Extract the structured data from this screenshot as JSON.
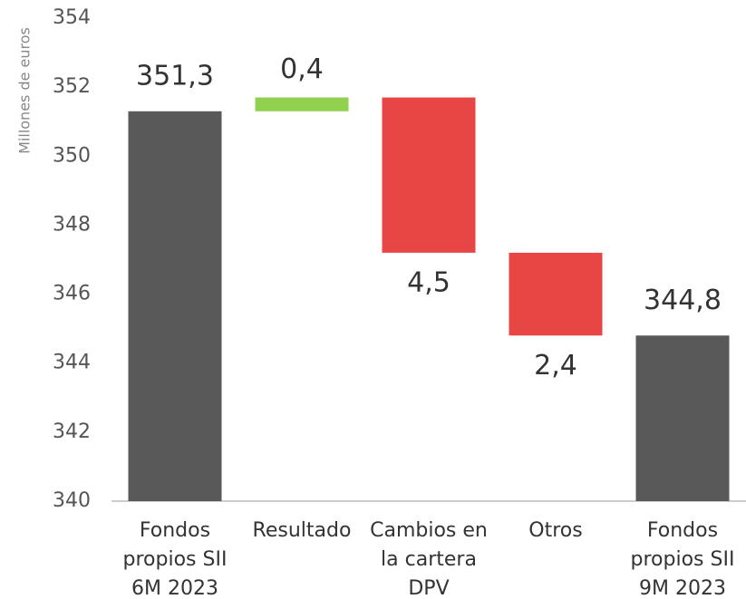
{
  "chart_data": {
    "type": "waterfall",
    "y_label": "Millones de euros",
    "categories": [
      [
        "Fondos",
        "propios SII",
        "6M 2023"
      ],
      [
        "Resultado"
      ],
      [
        "Cambios en",
        "la cartera",
        "DPV"
      ],
      [
        "Otros"
      ],
      [
        "Fondos",
        "propios SII",
        "9M 2023"
      ]
    ],
    "values": [
      351.3,
      0.4,
      -4.5,
      -2.4,
      344.8
    ],
    "value_labels": [
      "351,3",
      "0,4",
      "4,5",
      "2,4",
      "344,8"
    ],
    "measures": [
      "absolute",
      "relative",
      "relative",
      "relative",
      "absolute"
    ],
    "colors": {
      "total": "#595959",
      "increase": "#92d050",
      "decrease": "#e84545"
    },
    "ylim": [
      340,
      354
    ],
    "yticks": [
      340,
      342,
      344,
      346,
      348,
      350,
      352,
      354
    ],
    "grid": false
  }
}
